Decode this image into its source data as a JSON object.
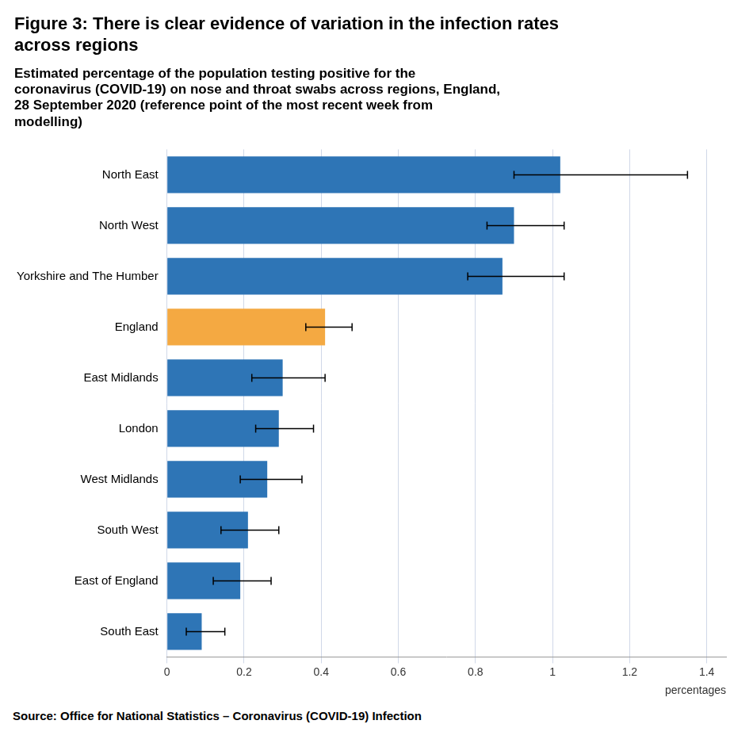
{
  "chart_data": {
    "type": "bar",
    "orientation": "horizontal",
    "title": [
      "Figure 3: There is clear evidence of variation in the infection rates",
      "across regions"
    ],
    "subtitle": [
      "Estimated percentage of the population testing positive for the",
      "coronavirus (COVID-19) on nose and throat swabs across regions, England,",
      "28 September 2020 (reference point of the most recent week from",
      "modelling)"
    ],
    "source": "Source: Office for National Statistics – Coronavirus (COVID-19) Infection",
    "xlabel": "percentages",
    "categories": [
      "North East",
      "North West",
      "Yorkshire and The Humber",
      "England",
      "East Midlands",
      "London",
      "West Midlands",
      "South West",
      "East of England",
      "South East"
    ],
    "values": [
      1.02,
      0.9,
      0.87,
      0.41,
      0.3,
      0.29,
      0.26,
      0.21,
      0.19,
      0.09
    ],
    "error_minus": [
      0.12,
      0.07,
      0.09,
      0.05,
      0.08,
      0.06,
      0.07,
      0.07,
      0.07,
      0.04
    ],
    "error_plus": [
      0.33,
      0.13,
      0.16,
      0.07,
      0.11,
      0.09,
      0.09,
      0.08,
      0.08,
      0.06
    ],
    "colors": [
      "#2e75b6",
      "#2e75b6",
      "#2e75b6",
      "#f4a942",
      "#2e75b6",
      "#2e75b6",
      "#2e75b6",
      "#2e75b6",
      "#2e75b6",
      "#2e75b6"
    ],
    "xlim": [
      0,
      1.45
    ],
    "xticks": [
      0,
      0.2,
      0.4,
      0.6,
      0.8,
      1,
      1.2,
      1.4
    ],
    "grid": true
  }
}
